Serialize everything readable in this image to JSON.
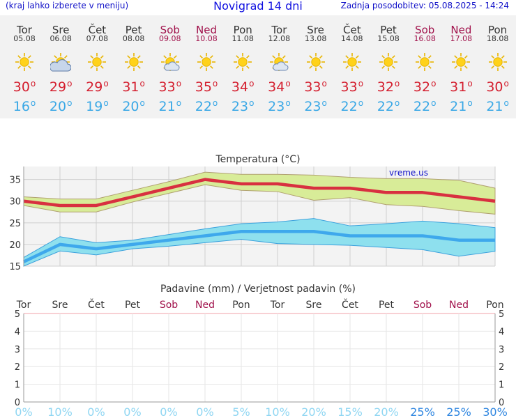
{
  "header": {
    "hint": "(kraj lahko izberete v meniju)",
    "title": "Novigrad 14 dni",
    "updated": "Zadnja posodobitev: 05.08.2025 - 14:24"
  },
  "days": [
    {
      "name": "Tor",
      "date": "05.08",
      "weekend": false,
      "icon": "sun-icon",
      "tmax": "30",
      "tmin": "16"
    },
    {
      "name": "Sre",
      "date": "06.08",
      "weekend": false,
      "icon": "partly-cloudy-icon",
      "tmax": "29",
      "tmin": "20"
    },
    {
      "name": "Čet",
      "date": "07.08",
      "weekend": false,
      "icon": "sun-icon",
      "tmax": "29",
      "tmin": "19"
    },
    {
      "name": "Pet",
      "date": "08.08",
      "weekend": false,
      "icon": "sun-icon",
      "tmax": "31",
      "tmin": "20"
    },
    {
      "name": "Sob",
      "date": "09.08",
      "weekend": true,
      "icon": "sun-cloud-icon",
      "tmax": "33",
      "tmin": "21"
    },
    {
      "name": "Ned",
      "date": "10.08",
      "weekend": true,
      "icon": "sun-icon",
      "tmax": "35",
      "tmin": "22"
    },
    {
      "name": "Pon",
      "date": "11.08",
      "weekend": false,
      "icon": "sun-icon",
      "tmax": "34",
      "tmin": "23"
    },
    {
      "name": "Tor",
      "date": "12.08",
      "weekend": false,
      "icon": "sun-cloud-icon",
      "tmax": "34",
      "tmin": "23"
    },
    {
      "name": "Sre",
      "date": "13.08",
      "weekend": false,
      "icon": "sun-icon",
      "tmax": "33",
      "tmin": "23"
    },
    {
      "name": "Čet",
      "date": "14.08",
      "weekend": false,
      "icon": "sun-icon",
      "tmax": "33",
      "tmin": "22"
    },
    {
      "name": "Pet",
      "date": "15.08",
      "weekend": false,
      "icon": "sun-icon",
      "tmax": "32",
      "tmin": "22"
    },
    {
      "name": "Sob",
      "date": "16.08",
      "weekend": true,
      "icon": "sun-icon",
      "tmax": "32",
      "tmin": "22"
    },
    {
      "name": "Ned",
      "date": "17.08",
      "weekend": true,
      "icon": "sun-icon",
      "tmax": "31",
      "tmin": "21"
    },
    {
      "name": "Pon",
      "date": "18.08",
      "weekend": false,
      "icon": "sun-icon",
      "tmax": "30",
      "tmin": "21"
    }
  ],
  "degree_symbol": "o",
  "colors": {
    "max": "#d41e2e",
    "min": "#3aa8e6",
    "max_band": "#d8ec98",
    "min_band": "#8ee0ee",
    "weekend": "#a0104a"
  },
  "chart_data": [
    {
      "type": "line",
      "title": "Temperatura (°C)",
      "watermark": "vreme.us",
      "ylim": [
        15,
        38
      ],
      "yticks": [
        15,
        20,
        25,
        30,
        35
      ],
      "x": [
        0,
        1,
        2,
        3,
        4,
        5,
        6,
        7,
        8,
        9,
        10,
        11,
        12,
        13
      ],
      "series": [
        {
          "name": "max",
          "values": [
            30,
            29,
            29,
            31,
            33,
            35,
            34,
            34,
            33,
            33,
            32,
            32,
            31,
            30
          ],
          "band_high": [
            31,
            30.5,
            30.5,
            32.5,
            34.5,
            36.7,
            36.2,
            36.2,
            36,
            35.5,
            35.2,
            35.2,
            34.8,
            33
          ],
          "band_low": [
            29,
            27.5,
            27.5,
            29.8,
            31.8,
            33.8,
            32.5,
            32.2,
            30.2,
            30.8,
            29.2,
            28.8,
            27.8,
            27
          ]
        },
        {
          "name": "min",
          "values": [
            16,
            20,
            19,
            20,
            21,
            22,
            23,
            23,
            23,
            22,
            22,
            22,
            21,
            21
          ],
          "band_high": [
            17,
            21.8,
            20.4,
            21,
            22.3,
            23.6,
            24.8,
            25.2,
            26,
            24.3,
            24.8,
            25.4,
            24.8,
            23.9
          ],
          "band_low": [
            15,
            18.5,
            17.6,
            19,
            19.6,
            20.4,
            21.2,
            20.2,
            20,
            19.8,
            19.3,
            18.8,
            17.3,
            18.4
          ]
        }
      ]
    },
    {
      "type": "bar",
      "title": "Padavine (mm) / Verjetnost padavin (%)",
      "ylim": [
        0,
        5
      ],
      "yticks": [
        0,
        1,
        2,
        3,
        4,
        5
      ],
      "categories": [
        "Tor",
        "Sre",
        "Čet",
        "Pet",
        "Sob",
        "Ned",
        "Pon",
        "Tor",
        "Sre",
        "Čet",
        "Pet",
        "Sob",
        "Ned",
        "Pon"
      ],
      "weekend": [
        false,
        false,
        false,
        false,
        true,
        true,
        false,
        false,
        false,
        false,
        false,
        true,
        true,
        false
      ],
      "values": [
        0,
        0,
        0,
        0,
        0,
        0,
        0,
        0,
        0,
        0,
        0,
        0,
        0,
        0
      ],
      "probability": [
        "0%",
        "10%",
        "0%",
        "0%",
        "0%",
        "0%",
        "5%",
        "10%",
        "20%",
        "15%",
        "20%",
        "25%",
        "25%",
        "30%"
      ]
    }
  ]
}
